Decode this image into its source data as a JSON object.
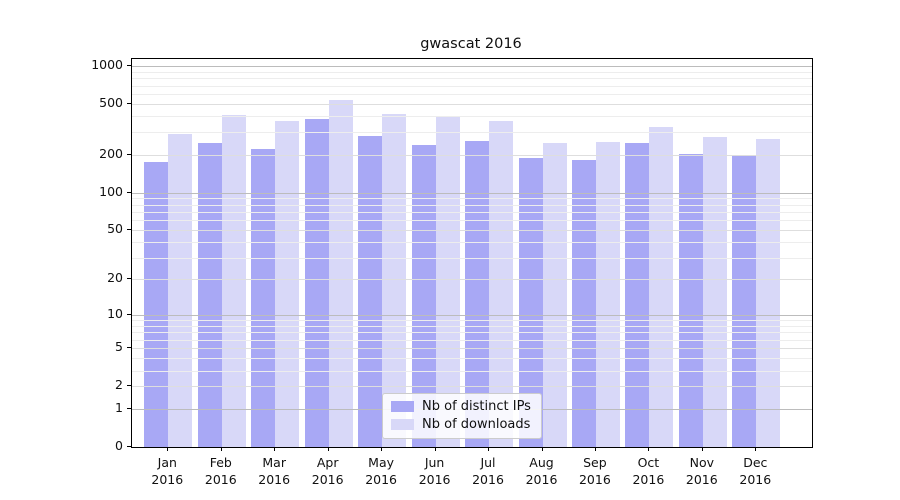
{
  "title": "gwascat 2016",
  "chart_data": {
    "type": "bar",
    "title": "gwascat 2016",
    "scale": "log1p",
    "ylim": [
      0,
      1000
    ],
    "y_ticks": [
      1000,
      500,
      200,
      100,
      50,
      20,
      10,
      5,
      2,
      1,
      0
    ],
    "grid": "horizontal, major and minor, drawn above bars",
    "legend_position": "lower center",
    "categories": [
      "Jan 2016",
      "Feb 2016",
      "Mar 2016",
      "Apr 2016",
      "May 2016",
      "Jun 2016",
      "Jul 2016",
      "Aug 2016",
      "Sep 2016",
      "Oct 2016",
      "Nov 2016",
      "Dec 2016"
    ],
    "month_labels": [
      "Jan",
      "Feb",
      "Mar",
      "Apr",
      "May",
      "Jun",
      "Jul",
      "Aug",
      "Sep",
      "Oct",
      "Nov",
      "Dec"
    ],
    "year_label": "2016",
    "series": [
      {
        "name": "Nb of distinct IPs",
        "slug": "distinct-ips",
        "color": "#a8a8f5",
        "values": [
          176,
          249,
          220,
          385,
          278,
          237,
          255,
          188,
          180,
          247,
          203,
          200
        ]
      },
      {
        "name": "Nb of downloads",
        "slug": "downloads",
        "color": "#d8d8f8",
        "values": [
          290,
          407,
          365,
          540,
          420,
          400,
          370,
          248,
          250,
          333,
          276,
          266
        ]
      }
    ]
  },
  "colors": {
    "axis": "#000000",
    "grid_major_decade": "#bcbcbc",
    "grid_labeled_minor": "#dedede",
    "grid_minor": "#ededed",
    "background": "#ffffff"
  }
}
